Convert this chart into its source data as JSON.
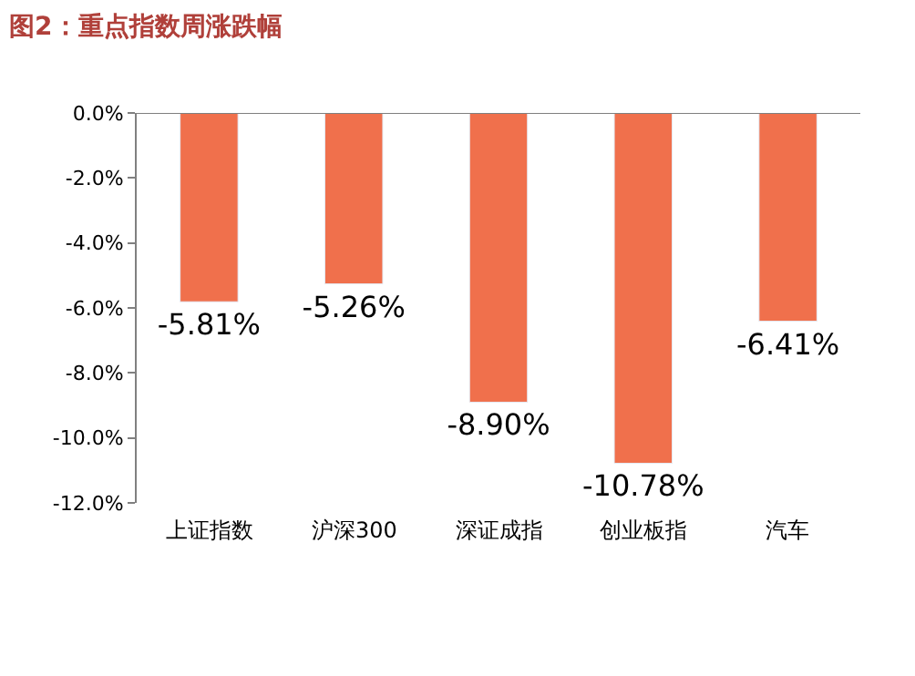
{
  "chart_data": {
    "type": "bar",
    "title": "图2：重点指数周涨跌幅",
    "categories": [
      "上证指数",
      "沪深300",
      "深证成指",
      "创业板指",
      "汽车"
    ],
    "values": [
      -5.81,
      -5.26,
      -8.9,
      -10.78,
      -6.41
    ],
    "value_labels": [
      "-5.81%",
      "-5.26%",
      "-8.90%",
      "-10.78%",
      "-6.41%"
    ],
    "color": "#f0704c",
    "ylim": [
      -12,
      0
    ],
    "yticks": [
      {
        "value": 0,
        "label": "0.0%"
      },
      {
        "value": -2,
        "label": "-2.0%"
      },
      {
        "value": -4,
        "label": "-4.0%"
      },
      {
        "value": -6,
        "label": "-6.0%"
      },
      {
        "value": -8,
        "label": "-8.0%"
      },
      {
        "value": -10,
        "label": "-10.0%"
      },
      {
        "value": -12,
        "label": "-12.0%"
      }
    ],
    "legend": false
  }
}
